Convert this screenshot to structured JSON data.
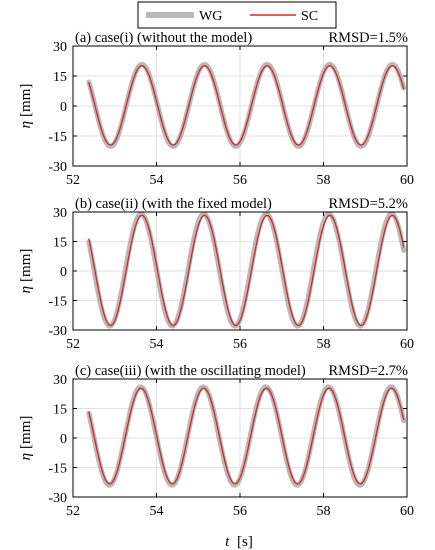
{
  "chart_data": {
    "type": "line",
    "legend": {
      "placement": "top-center",
      "entries": [
        {
          "label": "WG",
          "color": "#b8b8b8"
        },
        {
          "label": "SC",
          "color": "#d62728"
        }
      ]
    },
    "xlabel_var": "t",
    "xlabel_unit": "[s]",
    "ylabel_var": "η",
    "ylabel_unit": "[mm]",
    "xlim": [
      52,
      60
    ],
    "xticks": [
      "52",
      "54",
      "56",
      "58",
      "60"
    ],
    "ylim": [
      -30,
      30
    ],
    "yticks": [
      "30",
      "15",
      "0",
      "-15",
      "-30"
    ],
    "grid": true,
    "panels": [
      {
        "title": "(a) case(i) (without the model)",
        "rmsd": "RMSD=1.5%",
        "t_start": 52.38,
        "t_end": 59.92,
        "series": [
          {
            "name": "WG",
            "amplitude": 20.5,
            "offset": 0.3,
            "period": 1.5,
            "phase_time": 53.65
          },
          {
            "name": "SC",
            "amplitude": 19.8,
            "offset": 0.3,
            "period": 1.5,
            "phase_time": 53.65
          }
        ]
      },
      {
        "title": "(b) case(ii)  (with the fixed model)",
        "rmsd": "RMSD=5.2%",
        "t_start": 52.38,
        "t_end": 59.92,
        "series": [
          {
            "name": "WG",
            "amplitude": 28.5,
            "offset": 0.5,
            "period": 1.5,
            "phase_time": 53.63
          },
          {
            "name": "SC",
            "amplitude": 28.0,
            "offset": 0.3,
            "period": 1.5,
            "phase_time": 53.65
          }
        ]
      },
      {
        "title": "(c) case(iii)  (with the oscillating model)",
        "rmsd": "RMSD=2.7%",
        "t_start": 52.38,
        "t_end": 59.92,
        "series": [
          {
            "name": "WG",
            "amplitude": 25.0,
            "offset": 1.0,
            "period": 1.5,
            "phase_time": 53.62
          },
          {
            "name": "SC",
            "amplitude": 24.3,
            "offset": 1.0,
            "period": 1.5,
            "phase_time": 53.63
          }
        ]
      }
    ]
  }
}
